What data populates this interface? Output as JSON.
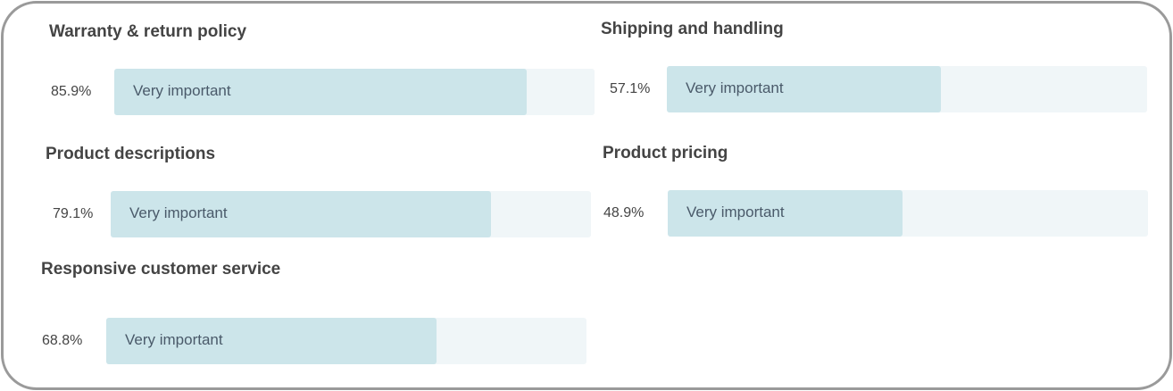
{
  "colors": {
    "fill": "#cce5ea",
    "track": "#f0f6f8",
    "border": "#9a9a9a"
  },
  "items": [
    {
      "title": "Warranty & return policy",
      "percent_label": "85.9%",
      "value": 85.9,
      "bar_label": "Very important"
    },
    {
      "title": "Product descriptions",
      "percent_label": "79.1%",
      "value": 79.1,
      "bar_label": "Very important"
    },
    {
      "title": "Responsive customer service",
      "percent_label": "68.8%",
      "value": 68.8,
      "bar_label": "Very important"
    },
    {
      "title": "Shipping and handling",
      "percent_label": "57.1%",
      "value": 57.1,
      "bar_label": "Very important"
    },
    {
      "title": "Product pricing",
      "percent_label": "48.9%",
      "value": 48.9,
      "bar_label": "Very important"
    }
  ]
}
